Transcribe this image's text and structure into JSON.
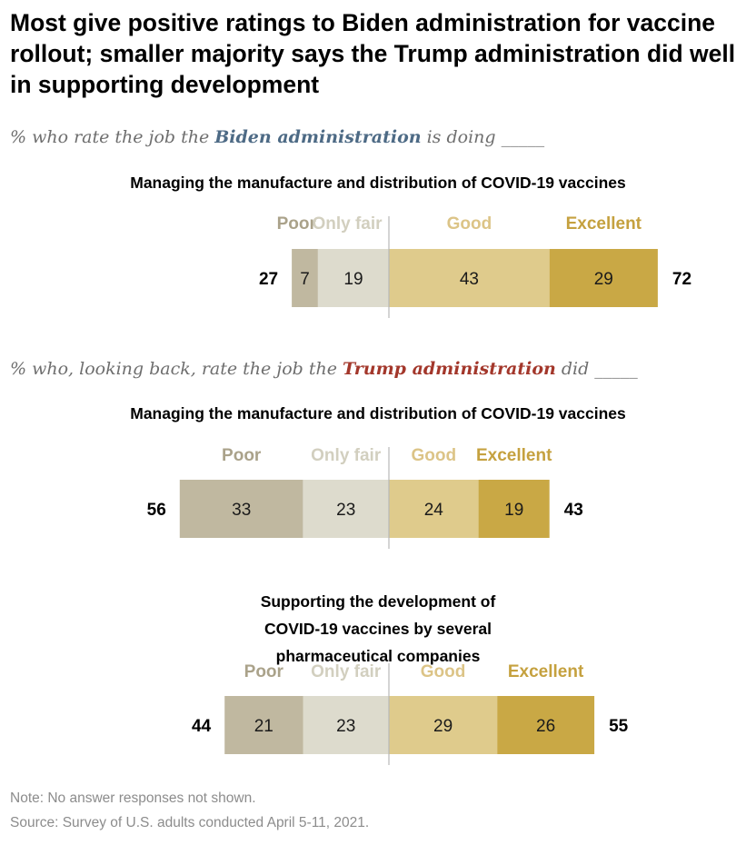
{
  "title": "Most give positive ratings to Biden administration for vaccine rollout; smaller majority says the Trump administration did well in supporting development",
  "subtitle1": {
    "prefix": "% who rate the job the ",
    "emph": "Biden administration",
    "suffix": " is doing _____"
  },
  "subtitle2": {
    "prefix": "% who, looking back, rate the job the ",
    "emph": "Trump administration",
    "suffix": " did _____"
  },
  "colors": {
    "poor": "#c0b8a0",
    "only_fair": "#dddbcd",
    "good": "#dfcb8c",
    "excellent": "#c9a845",
    "poor_label": "#aaa28a",
    "only_fair_label": "#d2cfbf",
    "good_label": "#dcc487",
    "excellent_label": "#c5a13f",
    "baseline": "#b7b7b7"
  },
  "chart_data": [
    {
      "type": "bar",
      "subtype": "diverging-stacked",
      "title": "Managing the manufacture and distribution of COVID-19 vaccines",
      "categories": [
        "Poor",
        "Only fair",
        "Good",
        "Excellent"
      ],
      "values": [
        7,
        19,
        43,
        29
      ],
      "negative_net": 27,
      "positive_net": 72
    },
    {
      "type": "bar",
      "subtype": "diverging-stacked",
      "title": "Managing the manufacture and distribution of COVID-19 vaccines",
      "categories": [
        "Poor",
        "Only fair",
        "Good",
        "Excellent"
      ],
      "values": [
        33,
        23,
        24,
        19
      ],
      "negative_net": 56,
      "positive_net": 43
    },
    {
      "type": "bar",
      "subtype": "diverging-stacked",
      "title": "Supporting the development of COVID-19 vaccines by several pharmaceutical companies",
      "categories": [
        "Poor",
        "Only fair",
        "Good",
        "Excellent"
      ],
      "values": [
        21,
        23,
        29,
        26
      ],
      "negative_net": 44,
      "positive_net": 55
    }
  ],
  "note": "Note: No answer responses not shown.",
  "source": "Source: Survey of U.S. adults conducted April 5-11, 2021."
}
